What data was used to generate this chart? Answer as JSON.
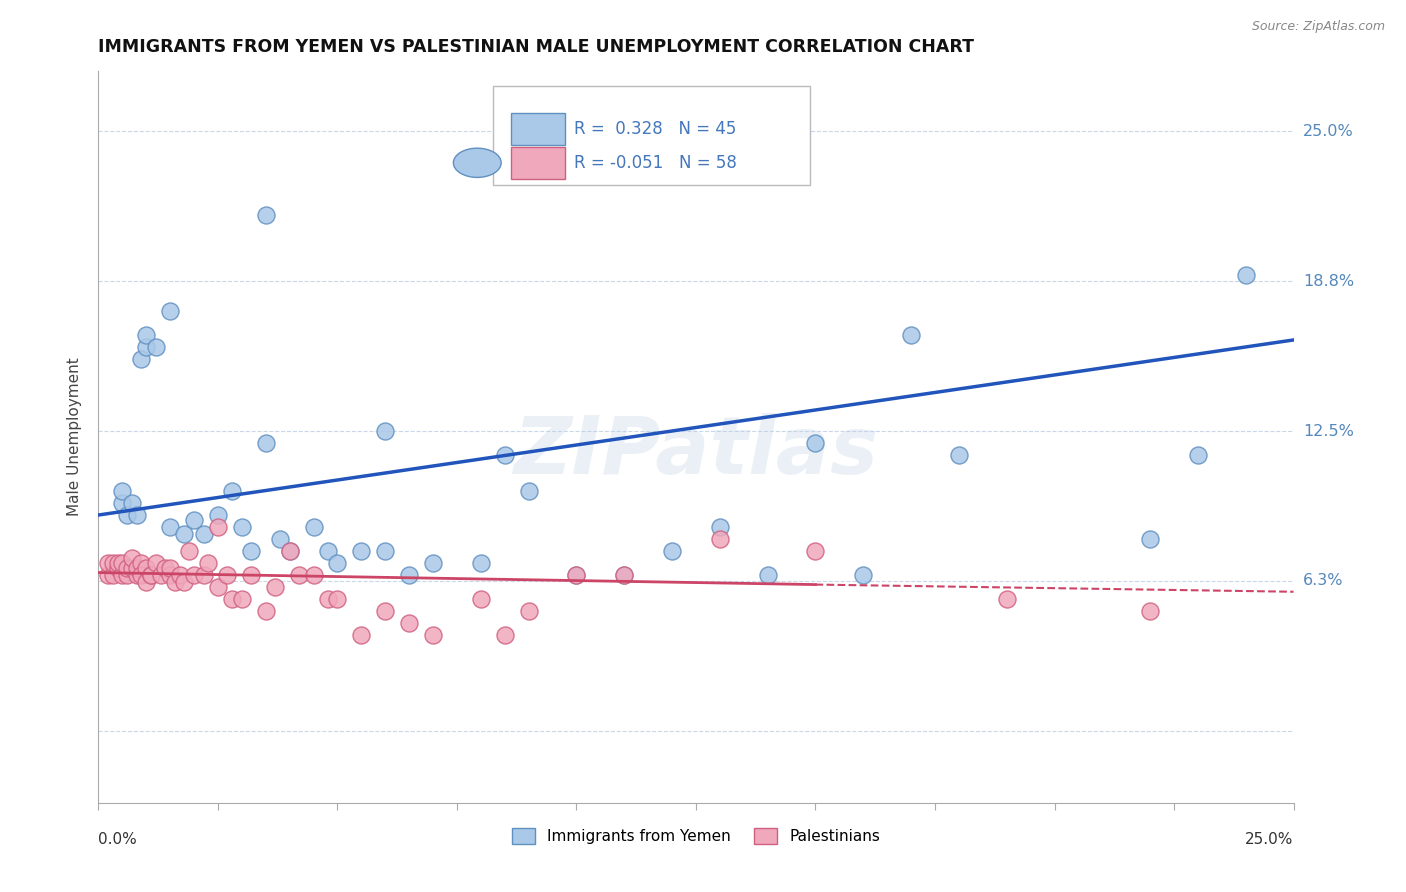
{
  "title": "IMMIGRANTS FROM YEMEN VS PALESTINIAN MALE UNEMPLOYMENT CORRELATION CHART",
  "source": "Source: ZipAtlas.com",
  "ylabel": "Male Unemployment",
  "xmin": 0.0,
  "xmax": 0.25,
  "ymin": -0.03,
  "ymax": 0.275,
  "ytick_vals": [
    0.0,
    0.0625,
    0.125,
    0.1875,
    0.25
  ],
  "ytick_labels": [
    "",
    "6.3%",
    "12.5%",
    "18.8%",
    "25.0%"
  ],
  "xtick_label_left": "0.0%",
  "xtick_label_right": "25.0%",
  "blue_face": "#aac8e8",
  "blue_edge": "#6090c0",
  "pink_face": "#f0a8bc",
  "pink_edge": "#d06080",
  "trend_blue": "#2255bb",
  "trend_pink": "#cc4466",
  "legend_r_blue": "R =  0.328   N = 45",
  "legend_r_pink": "R = -0.051   N = 58",
  "watermark": "ZIPatlas",
  "blue_x": [
    0.005,
    0.005,
    0.006,
    0.007,
    0.008,
    0.009,
    0.01,
    0.01,
    0.012,
    0.015,
    0.015,
    0.018,
    0.02,
    0.022,
    0.025,
    0.028,
    0.03,
    0.032,
    0.035,
    0.038,
    0.04,
    0.045,
    0.048,
    0.05,
    0.055,
    0.06,
    0.065,
    0.07,
    0.08,
    0.085,
    0.09,
    0.1,
    0.11,
    0.12,
    0.13,
    0.14,
    0.15,
    0.16,
    0.17,
    0.18,
    0.22,
    0.23,
    0.24,
    0.035,
    0.06
  ],
  "blue_y": [
    0.095,
    0.1,
    0.09,
    0.095,
    0.09,
    0.155,
    0.16,
    0.165,
    0.16,
    0.175,
    0.085,
    0.082,
    0.088,
    0.082,
    0.09,
    0.1,
    0.085,
    0.075,
    0.12,
    0.08,
    0.075,
    0.085,
    0.075,
    0.07,
    0.075,
    0.075,
    0.065,
    0.07,
    0.07,
    0.115,
    0.1,
    0.065,
    0.065,
    0.075,
    0.085,
    0.065,
    0.12,
    0.065,
    0.165,
    0.115,
    0.08,
    0.115,
    0.19,
    0.215,
    0.125
  ],
  "pink_x": [
    0.002,
    0.002,
    0.003,
    0.003,
    0.004,
    0.004,
    0.005,
    0.005,
    0.006,
    0.006,
    0.007,
    0.007,
    0.008,
    0.008,
    0.009,
    0.009,
    0.01,
    0.01,
    0.011,
    0.011,
    0.012,
    0.013,
    0.014,
    0.015,
    0.015,
    0.016,
    0.017,
    0.018,
    0.019,
    0.02,
    0.022,
    0.023,
    0.025,
    0.027,
    0.028,
    0.03,
    0.032,
    0.035,
    0.037,
    0.04,
    0.042,
    0.045,
    0.048,
    0.05,
    0.055,
    0.06,
    0.065,
    0.07,
    0.08,
    0.085,
    0.09,
    0.1,
    0.11,
    0.13,
    0.15,
    0.19,
    0.22,
    0.025
  ],
  "pink_y": [
    0.065,
    0.07,
    0.065,
    0.07,
    0.068,
    0.07,
    0.065,
    0.07,
    0.065,
    0.068,
    0.068,
    0.072,
    0.065,
    0.068,
    0.07,
    0.065,
    0.068,
    0.062,
    0.065,
    0.065,
    0.07,
    0.065,
    0.068,
    0.065,
    0.068,
    0.062,
    0.065,
    0.062,
    0.075,
    0.065,
    0.065,
    0.07,
    0.06,
    0.065,
    0.055,
    0.055,
    0.065,
    0.05,
    0.06,
    0.075,
    0.065,
    0.065,
    0.055,
    0.055,
    0.04,
    0.05,
    0.045,
    0.04,
    0.055,
    0.04,
    0.05,
    0.065,
    0.065,
    0.08,
    0.075,
    0.055,
    0.05,
    0.085
  ]
}
